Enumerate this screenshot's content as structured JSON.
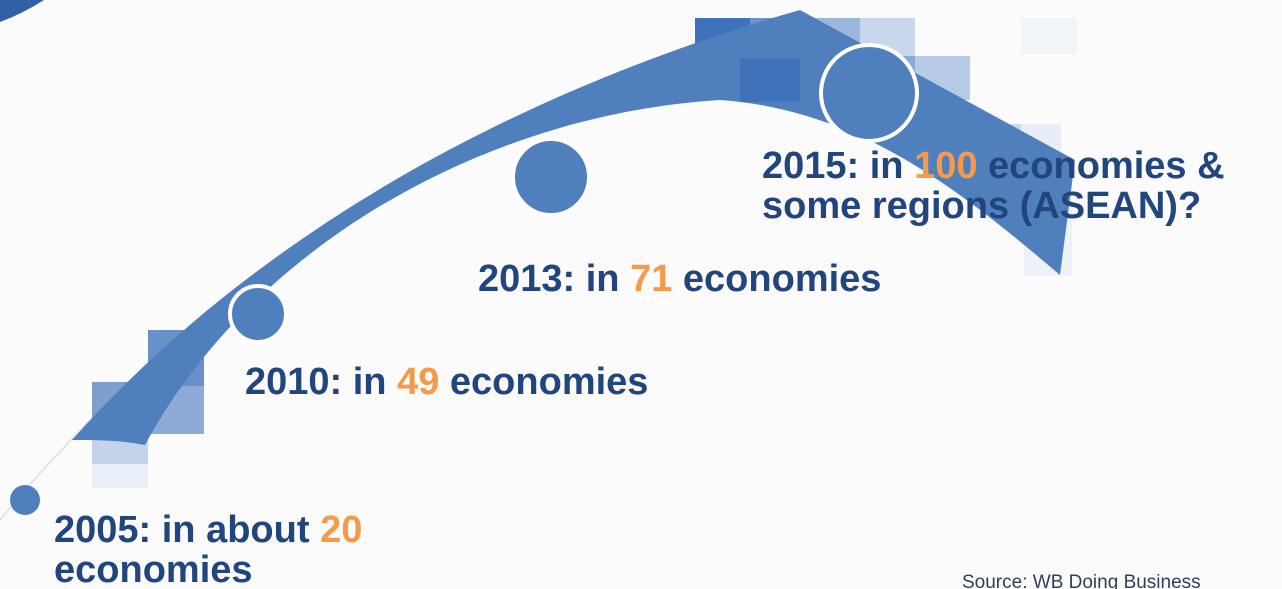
{
  "colors": {
    "background": "#fbfbfc",
    "arc": "#4f7fbd",
    "text": "#21457c",
    "highlight": "#f59a4a"
  },
  "milestones": [
    {
      "prefix": "2005: in about ",
      "number": "20",
      "suffix": "",
      "line2": "economies"
    },
    {
      "prefix": "2010: in ",
      "number": "49",
      "suffix": " economies"
    },
    {
      "prefix": "2013: in ",
      "number": "71",
      "suffix": " economies"
    },
    {
      "prefix": "2015: in ",
      "number": "100",
      "suffix": " economies &",
      "line2": "some regions (ASEAN)?"
    }
  ],
  "source": "Source: WB Doing Business"
}
